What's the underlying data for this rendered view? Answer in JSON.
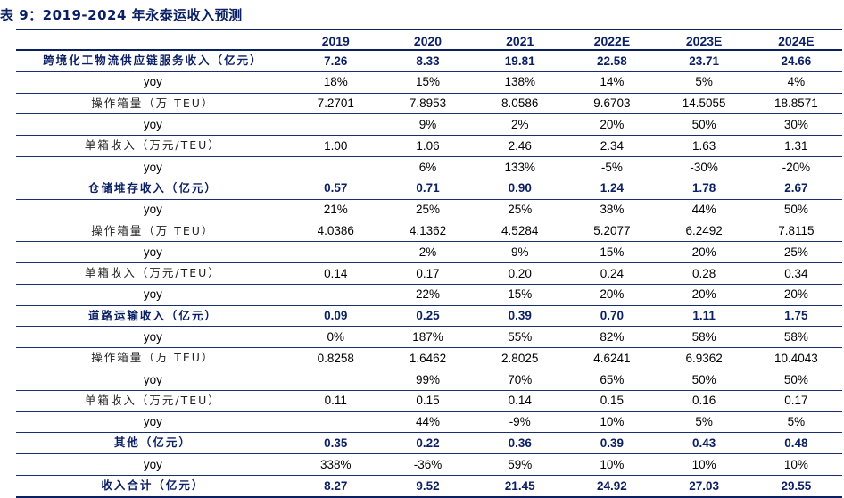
{
  "title": "表 9：2019-2024 年永泰运收入预测",
  "colors": {
    "header_text": "#0b1f63",
    "rule": "#0b1f63"
  },
  "table": {
    "columns": [
      "",
      "2019",
      "2020",
      "2021",
      "2022E",
      "2023E",
      "2024E"
    ],
    "rows": [
      {
        "type": "bold",
        "label": "跨境化工物流供应链服务收入（亿元）",
        "values": [
          "7.26",
          "8.33",
          "19.81",
          "22.58",
          "23.71",
          "24.66"
        ]
      },
      {
        "type": "yoy",
        "label": "yoy",
        "values": [
          "18%",
          "15%",
          "138%",
          "14%",
          "5%",
          "4%"
        ]
      },
      {
        "type": "sub",
        "label": "操作箱量（万 TEU）",
        "values": [
          "7.2701",
          "7.8953",
          "8.0586",
          "9.6703",
          "14.5055",
          "18.8571"
        ]
      },
      {
        "type": "yoy",
        "label": "yoy",
        "values": [
          "",
          "9%",
          "2%",
          "20%",
          "50%",
          "30%"
        ]
      },
      {
        "type": "sub",
        "label": "单箱收入（万元/TEU）",
        "values": [
          "1.00",
          "1.06",
          "2.46",
          "2.34",
          "1.63",
          "1.31"
        ]
      },
      {
        "type": "yoy",
        "label": "yoy",
        "values": [
          "",
          "6%",
          "133%",
          "-5%",
          "-30%",
          "-20%"
        ]
      },
      {
        "type": "bold",
        "label": "仓储堆存收入（亿元）",
        "values": [
          "0.57",
          "0.71",
          "0.90",
          "1.24",
          "1.78",
          "2.67"
        ]
      },
      {
        "type": "yoy",
        "label": "yoy",
        "values": [
          "21%",
          "25%",
          "25%",
          "38%",
          "44%",
          "50%"
        ]
      },
      {
        "type": "sub",
        "label": "操作箱量（万 TEU）",
        "values": [
          "4.0386",
          "4.1362",
          "4.5284",
          "5.2077",
          "6.2492",
          "7.8115"
        ]
      },
      {
        "type": "yoy",
        "label": "yoy",
        "values": [
          "",
          "2%",
          "9%",
          "15%",
          "20%",
          "25%"
        ]
      },
      {
        "type": "sub",
        "label": "单箱收入（万元/TEU）",
        "values": [
          "0.14",
          "0.17",
          "0.20",
          "0.24",
          "0.28",
          "0.34"
        ]
      },
      {
        "type": "yoy",
        "label": "yoy",
        "values": [
          "",
          "22%",
          "15%",
          "20%",
          "20%",
          "20%"
        ]
      },
      {
        "type": "bold",
        "label": "道路运输收入（亿元）",
        "values": [
          "0.09",
          "0.25",
          "0.39",
          "0.70",
          "1.11",
          "1.75"
        ]
      },
      {
        "type": "yoy",
        "label": "yoy",
        "values": [
          "0%",
          "187%",
          "55%",
          "82%",
          "58%",
          "58%"
        ]
      },
      {
        "type": "sub",
        "label": "操作箱量（万 TEU）",
        "values": [
          "0.8258",
          "1.6462",
          "2.8025",
          "4.6241",
          "6.9362",
          "10.4043"
        ]
      },
      {
        "type": "yoy",
        "label": "yoy",
        "values": [
          "",
          "99%",
          "70%",
          "65%",
          "50%",
          "50%"
        ]
      },
      {
        "type": "sub",
        "label": "单箱收入（万元/TEU）",
        "values": [
          "0.11",
          "0.15",
          "0.14",
          "0.15",
          "0.16",
          "0.17"
        ]
      },
      {
        "type": "yoy",
        "label": "yoy",
        "values": [
          "",
          "44%",
          "-9%",
          "10%",
          "5%",
          "5%"
        ]
      },
      {
        "type": "bold",
        "label": "其他（亿元）",
        "values": [
          "0.35",
          "0.22",
          "0.36",
          "0.39",
          "0.43",
          "0.48"
        ]
      },
      {
        "type": "yoy",
        "label": "yoy",
        "values": [
          "338%",
          "-36%",
          "59%",
          "10%",
          "10%",
          "10%"
        ]
      },
      {
        "type": "bold",
        "label": "收入合计（亿元）",
        "values": [
          "8.27",
          "9.52",
          "21.45",
          "24.92",
          "27.03",
          "29.55"
        ]
      }
    ]
  }
}
